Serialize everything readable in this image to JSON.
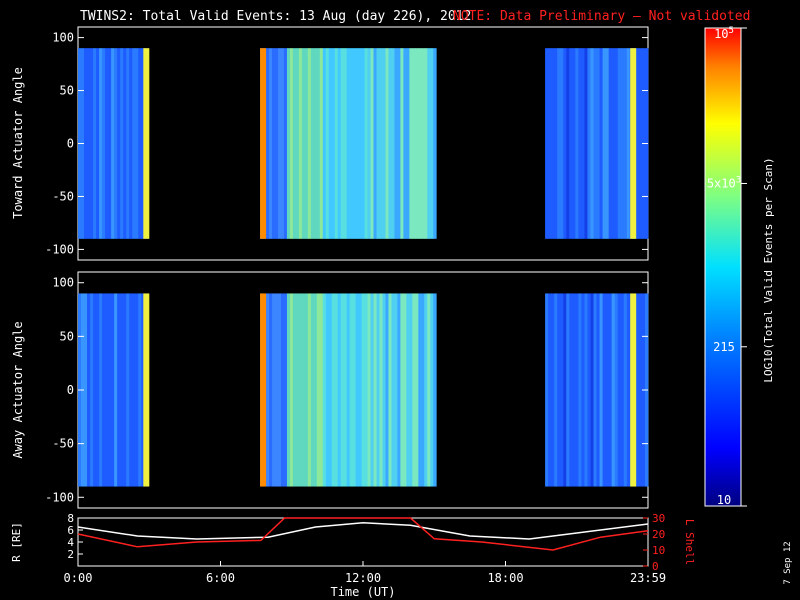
{
  "header": {
    "title": "TWINS2: Total Valid Events: 13 Aug (day 226), 2012",
    "note": "NOTE: Data Preliminary — Not validoted",
    "note_color": "#ff2020"
  },
  "footer": {
    "stamp": "7 Sep 12"
  },
  "chart_data": [
    {
      "type": "heatmap",
      "ylabel": "Toward Actuator Angle",
      "ylim": [
        -110,
        110
      ],
      "yticks": [
        "100",
        "50",
        "0",
        "-50",
        "-100"
      ],
      "xlim_hours": [
        0,
        24
      ],
      "data_blocks": [
        {
          "start": "00:00",
          "end": "02:55",
          "level": "blue",
          "bright_edge": "02:45"
        },
        {
          "start": "07:40",
          "end": "15:05",
          "level": "mixed",
          "bright_edge": "07:40"
        },
        {
          "start": "19:40",
          "end": "24:00",
          "level": "blue",
          "bright_edge": "23:15"
        }
      ]
    },
    {
      "type": "heatmap",
      "ylabel": "Away Actuator Angle",
      "ylim": [
        -110,
        110
      ],
      "yticks": [
        "100",
        "50",
        "0",
        "-50",
        "-100"
      ],
      "xlim_hours": [
        0,
        24
      ],
      "data_blocks": [
        {
          "start": "00:00",
          "end": "02:55",
          "level": "blue",
          "bright_edge": "02:45"
        },
        {
          "start": "07:40",
          "end": "15:05",
          "level": "mixed",
          "bright_edge": "07:40"
        },
        {
          "start": "19:40",
          "end": "24:00",
          "level": "blue",
          "bright_edge": "23:15"
        }
      ]
    },
    {
      "type": "line",
      "xlabel": "Time (UT)",
      "xticks": [
        "0:00",
        "6:00",
        "12:00",
        "18:00",
        "23:59"
      ],
      "ylabel": "R [RE]",
      "ylabel_right": "L Shell",
      "yticks_left": [
        "8",
        "6",
        "4",
        "2"
      ],
      "yticks_right": [
        "30",
        "20",
        "10",
        "0"
      ],
      "ylim_left": [
        0,
        8
      ],
      "ylim_right": [
        0,
        30
      ],
      "series": [
        {
          "name": "R",
          "axis": "left",
          "color": "#ffffff",
          "x": [
            0,
            2.5,
            5,
            8,
            10,
            12,
            14,
            16.5,
            19,
            21,
            24
          ],
          "y": [
            6.5,
            5.0,
            4.5,
            4.8,
            6.5,
            7.2,
            6.8,
            5.0,
            4.5,
            5.5,
            7.0
          ]
        },
        {
          "name": "L Shell",
          "axis": "right",
          "color": "#ff2020",
          "x": [
            0,
            2.5,
            5,
            7.7,
            8.7,
            9.2,
            14,
            15,
            17,
            20,
            22,
            24
          ],
          "y": [
            20,
            12,
            15,
            16,
            30,
            35,
            35,
            17,
            15,
            10,
            18,
            22
          ]
        }
      ]
    }
  ],
  "colorbar": {
    "label": "LOG10(Total Valid Events per Scan)",
    "scale": "log",
    "range": [
      10,
      100000
    ],
    "ticks": [
      {
        "value": 100000,
        "label": "10^5"
      },
      {
        "value": 5000,
        "label": "5x10^3"
      },
      {
        "value": 215,
        "label": "215"
      },
      {
        "value": 10,
        "label": "10"
      }
    ]
  }
}
